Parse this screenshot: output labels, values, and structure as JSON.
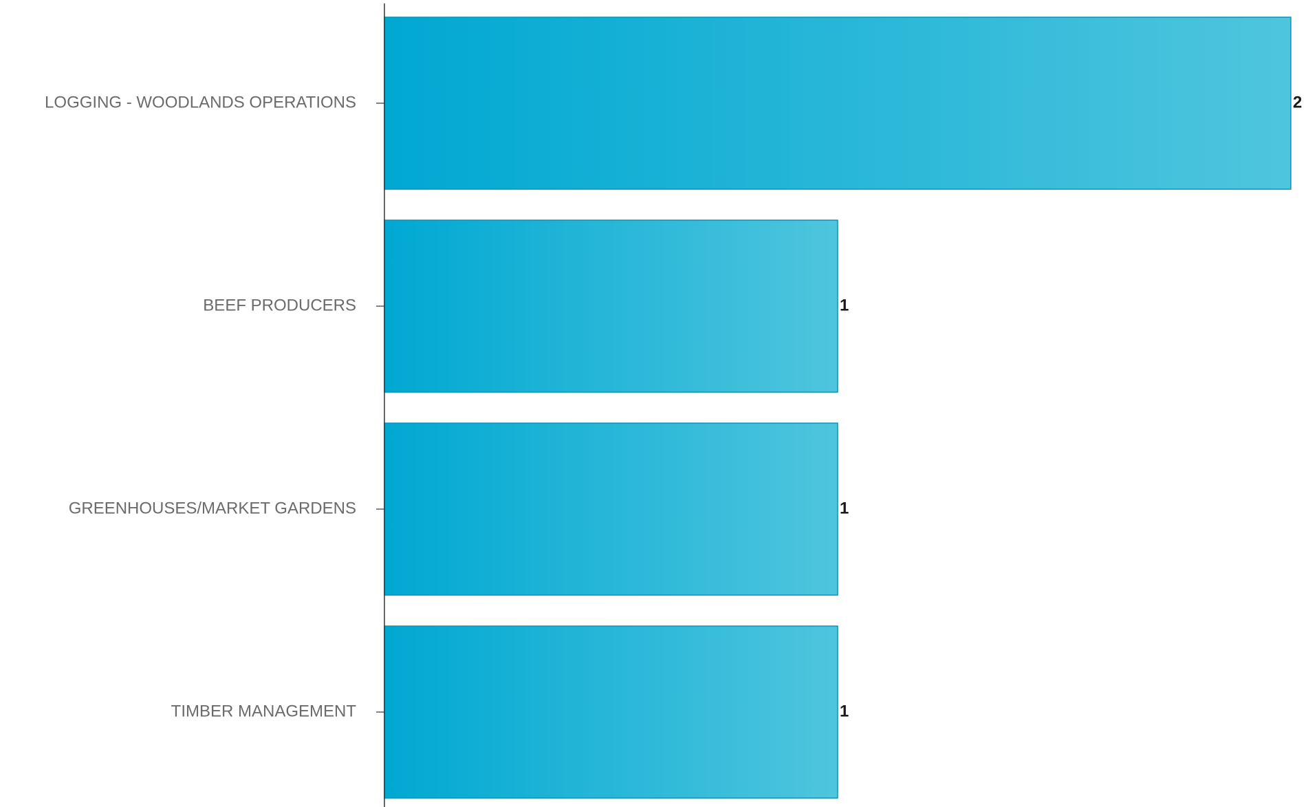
{
  "chart_data": {
    "type": "bar",
    "orientation": "horizontal",
    "categories": [
      "LOGGING - WOODLANDS OPERATIONS",
      "BEEF PRODUCERS",
      "GREENHOUSES/MARKET GARDENS",
      "TIMBER MANAGEMENT"
    ],
    "values": [
      2,
      1,
      1,
      1
    ],
    "title": "",
    "xlabel": "",
    "ylabel": "",
    "xlim": [
      0,
      2
    ],
    "grid": false,
    "legend": "none",
    "data_labels": [
      "2",
      "1",
      "1",
      "1"
    ],
    "colors": {
      "bar_start": "#00a8d2",
      "bar_end": "#4fc5de",
      "bar_stroke": "#0a93b8",
      "axis": "#333333",
      "category_text": "#6b6b6b",
      "value_text": "#1a1a1a"
    }
  }
}
